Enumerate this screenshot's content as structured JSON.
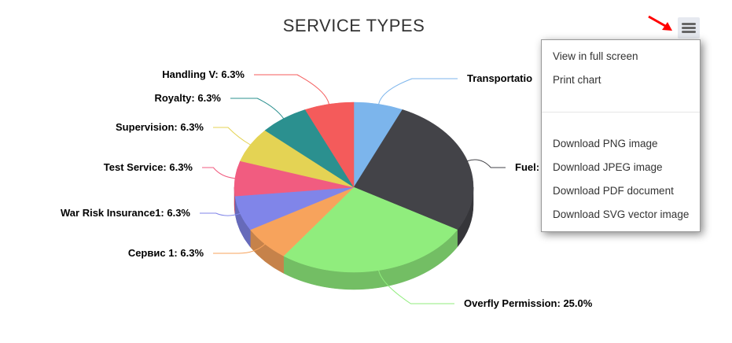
{
  "chart_data": {
    "type": "pie",
    "title": "SERVICE TYPES",
    "is_3d": true,
    "categories": [
      "Transportatio",
      "Fuel:",
      "Overfly Permission",
      "Сервис 1",
      "War Risk Insurance1",
      "Test Service",
      "Supervision",
      "Royalty",
      "Handling V"
    ],
    "values": [
      6.25,
      25.0,
      25.0,
      6.25,
      6.25,
      6.25,
      6.25,
      6.25,
      6.25
    ],
    "labels": [
      "Transportatio",
      "Fuel:",
      "Overfly Permission: 25.0%",
      "Сервис 1: 6.3%",
      "War Risk Insurance1: 6.3%",
      "Test Service: 6.3%",
      "Supervision: 6.3%",
      "Royalty: 6.3%",
      "Handling V: 6.3%"
    ],
    "colors": [
      "#7cb5ec",
      "#434348",
      "#90ed7d",
      "#f7a35c",
      "#8085e9",
      "#f15c80",
      "#e4d354",
      "#2b908f",
      "#f45b5b"
    ],
    "legend": "none"
  },
  "export_menu": {
    "button_icon": "hamburger-menu-icon",
    "items": [
      "View in full screen",
      "Print chart",
      "Download PNG image",
      "Download JPEG image",
      "Download PDF document",
      "Download SVG vector image"
    ],
    "pointer_color": "#ff0000"
  }
}
